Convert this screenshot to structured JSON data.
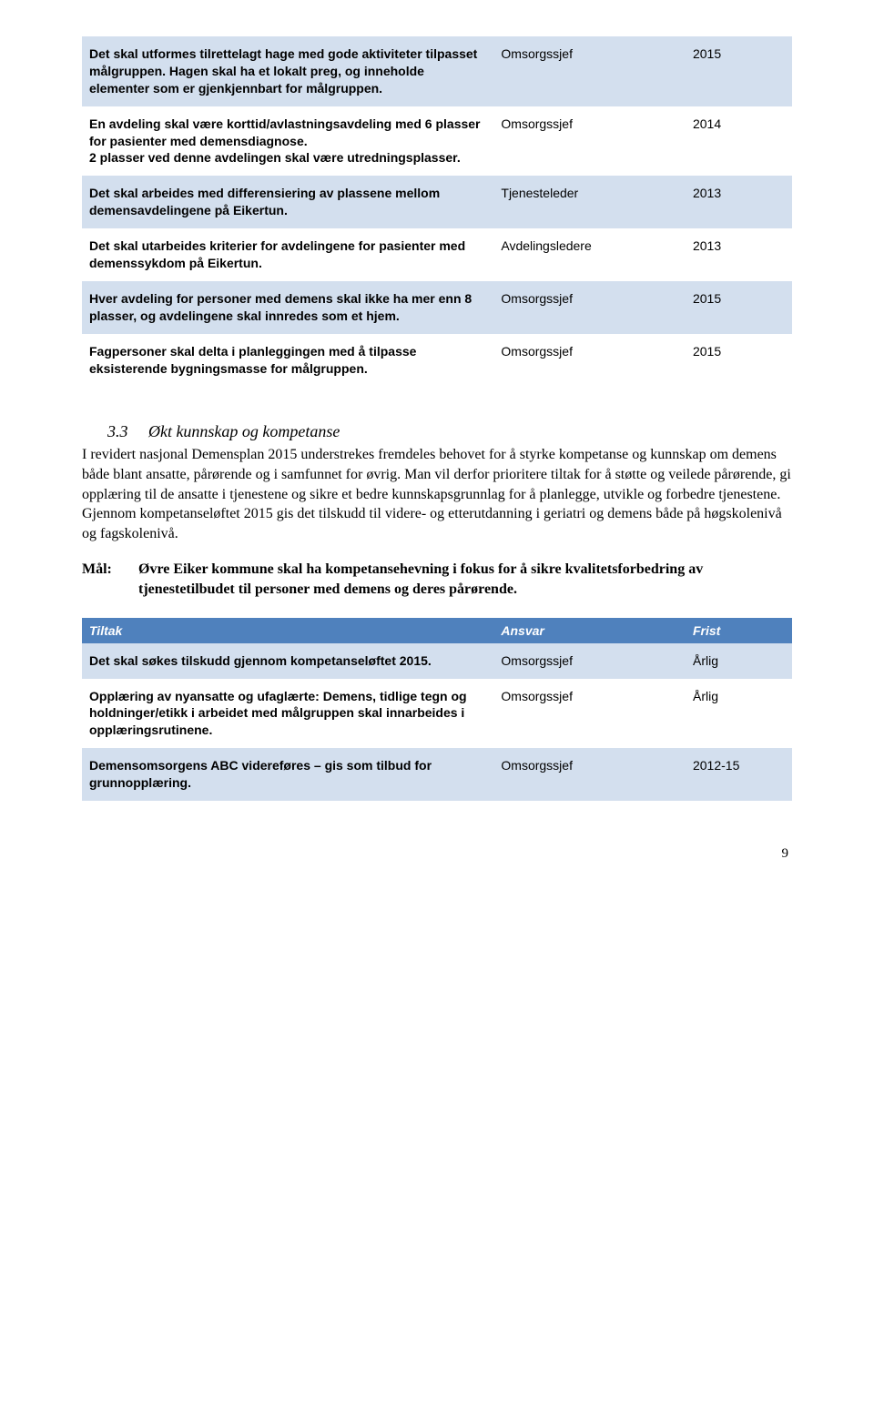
{
  "colors": {
    "header_bg": "#4f81bd",
    "header_text": "#ffffff",
    "row_alt_bg": "#d3dfee",
    "row_bg": "#ffffff",
    "text": "#000000"
  },
  "top_table": {
    "col_widths_pct": [
      58,
      27,
      15
    ],
    "fontsize": 14,
    "rows": [
      {
        "desc": "Det skal utformes tilrettelagt hage med gode aktiviteter tilpasset målgruppen. Hagen skal ha et lokalt preg, og inneholde elementer som er gjenkjennbart for målgruppen.",
        "resp": "Omsorgssjef",
        "year": "2015",
        "bg": "#d3dfee"
      },
      {
        "desc": "En avdeling skal være korttid/avlastningsavdeling med 6 plasser for pasienter med demensdiagnose.\n2 plasser ved denne avdelingen skal være utredningsplasser.",
        "resp": "Omsorgssjef",
        "year": "2014",
        "bg": "#ffffff"
      },
      {
        "desc": "Det skal arbeides med differensiering av plassene mellom demensavdelingene på Eikertun.",
        "resp": "Tjenesteleder",
        "year": "2013",
        "bg": "#d3dfee"
      },
      {
        "desc": "Det skal utarbeides kriterier for avdelingene for pasienter med demenssykdom på Eikertun.",
        "resp": "Avdelingsledere",
        "year": "2013",
        "bg": "#ffffff"
      },
      {
        "desc": "Hver avdeling for personer med demens skal ikke ha mer enn 8 plasser, og avdelingene skal innredes som et hjem.",
        "resp": "Omsorgssjef",
        "year": "2015",
        "bg": "#d3dfee"
      },
      {
        "desc": "Fagpersoner skal delta i planleggingen med å tilpasse eksisterende bygningsmasse for målgruppen.",
        "resp": "Omsorgssjef",
        "year": "2015",
        "bg": "#ffffff"
      }
    ]
  },
  "section": {
    "number": "3.3",
    "title": "Økt kunnskap og kompetanse",
    "paragraph": "I revidert nasjonal Demensplan 2015 understrekes fremdeles behovet for å styrke kompetanse og kunnskap om demens både blant ansatte, pårørende og i samfunnet for øvrig. Man vil derfor prioritere tiltak for å støtte og veilede pårørende, gi opplæring til de ansatte i tjenestene og sikre et bedre kunnskapsgrunnlag for å planlegge, utvikle og forbedre tjenestene. Gjennom kompetanseløftet 2015 gis det tilskudd til videre- og etterutdanning i geriatri og demens både på høgskolenivå og fagskolenivå."
  },
  "goal": {
    "label": "Mål:",
    "text": "Øvre Eiker kommune skal ha kompetansehevning i fokus for å sikre kvalitetsforbedring av tjenestetilbudet til personer med demens og deres pårørende."
  },
  "tiltak_header": {
    "cols": [
      "Tiltak",
      "Ansvar",
      "Frist"
    ]
  },
  "tiltak_table": {
    "col_widths_pct": [
      58,
      27,
      15
    ],
    "fontsize": 14,
    "rows": [
      {
        "desc": "Det skal søkes tilskudd gjennom kompetanseløftet 2015.",
        "resp": "Omsorgssjef",
        "year": "Årlig",
        "bg": "#d3dfee"
      },
      {
        "desc": "Opplæring av nyansatte og ufaglærte: Demens, tidlige tegn og holdninger/etikk i arbeidet med målgruppen skal innarbeides i opplæringsrutinene.",
        "resp": "Omsorgssjef",
        "year": "Årlig",
        "bg": "#ffffff"
      },
      {
        "desc": "Demensomsorgens ABC videreføres – gis som tilbud for grunnopplæring.",
        "resp": "Omsorgssjef",
        "year": "2012-15",
        "bg": "#d3dfee"
      }
    ]
  },
  "page_number": "9"
}
